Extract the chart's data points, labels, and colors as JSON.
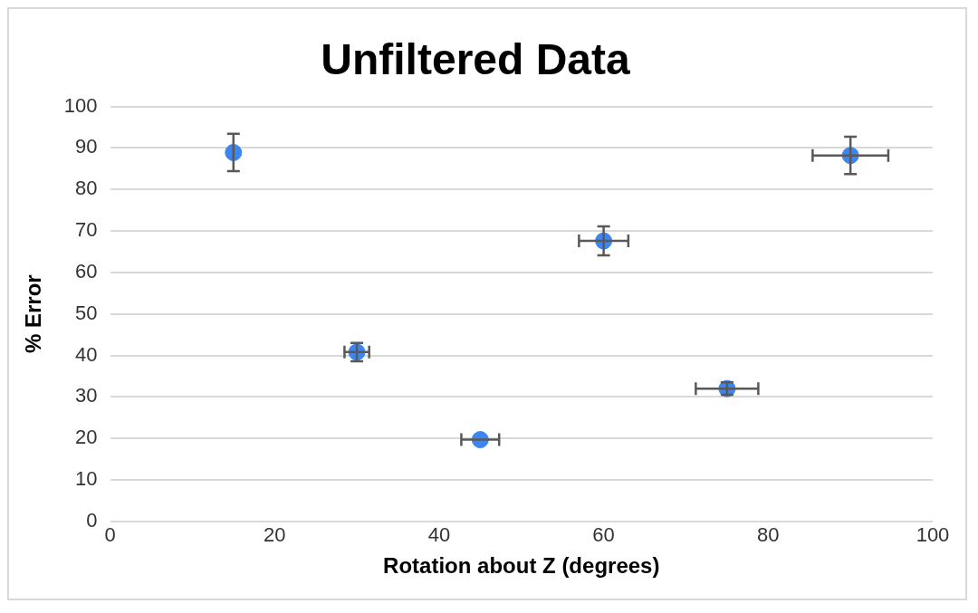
{
  "chart_data": {
    "type": "scatter",
    "title": "Unfiltered Data",
    "xlabel": "Rotation about Z (degrees)",
    "ylabel": "% Error",
    "x": [
      15,
      30,
      45,
      60,
      75,
      90
    ],
    "values": [
      88.9,
      40.8,
      19.7,
      67.6,
      32,
      88.2
    ],
    "errors": [
      4.5,
      2.2,
      null,
      3.5,
      1.5,
      4.5
    ],
    "xerrors": [
      null,
      1.5,
      2.3,
      3,
      3.8,
      4.6
    ],
    "color": "#3d85f0",
    "marker": "circle",
    "grid": "y",
    "legend": false,
    "xlim": [
      0,
      100
    ],
    "xticks": [
      0,
      20,
      40,
      60,
      80,
      100
    ],
    "ylim": [
      0,
      100
    ],
    "yticks": [
      0,
      10,
      20,
      30,
      40,
      50,
      60,
      70,
      80,
      90,
      100
    ]
  }
}
